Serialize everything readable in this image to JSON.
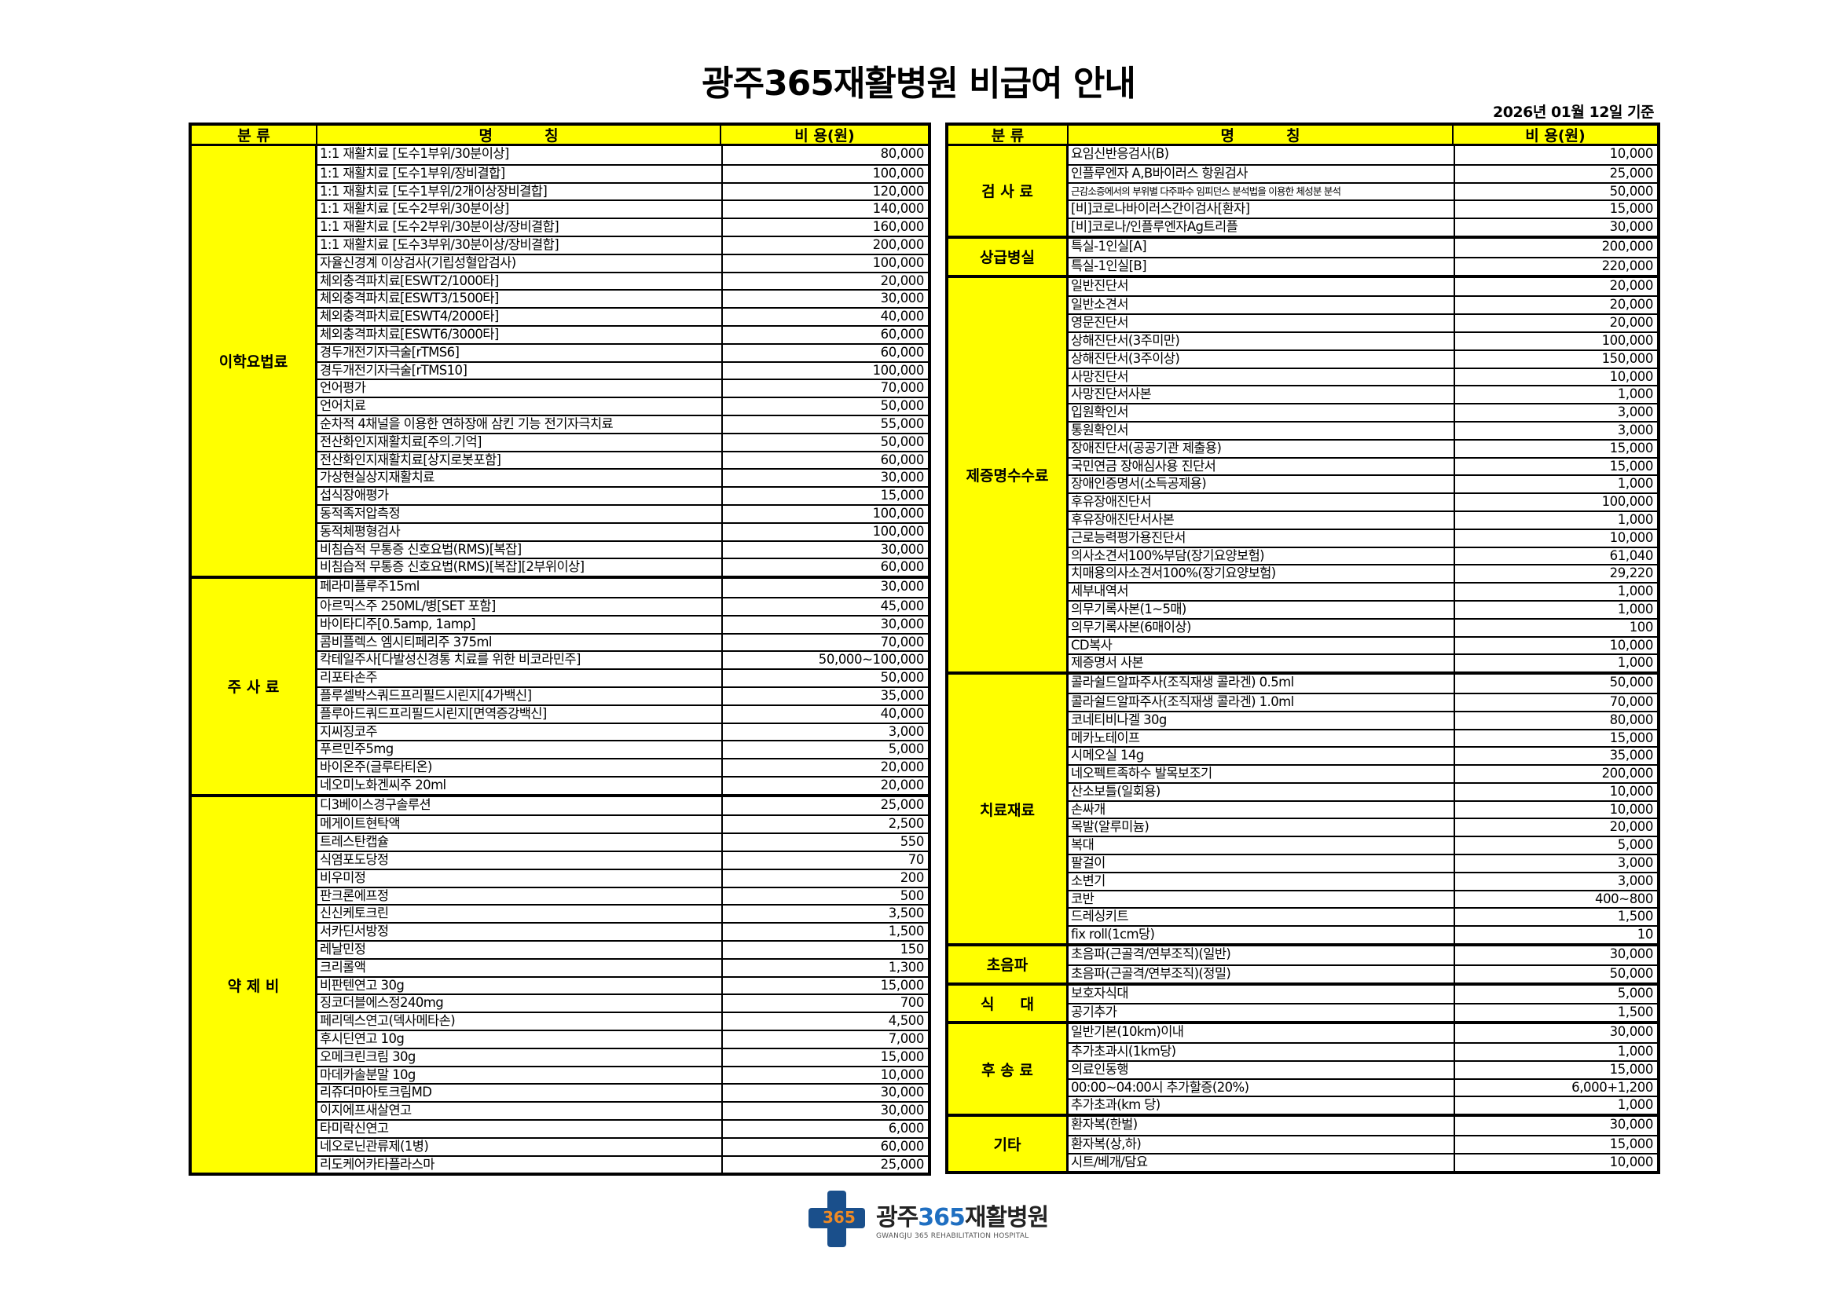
{
  "title": "광주365재활병원 비급여 안내",
  "date_label": "2026년 01월 12일 기준",
  "header": {
    "category": "분 류",
    "name": "명          칭",
    "price": "비 용(원)"
  },
  "colors": {
    "header_bg": "#ffff00",
    "category_bg": "#ffff00",
    "border": "#000000"
  },
  "left_groups": [
    {
      "category": "이학요법료",
      "items": [
        {
          "name": "1:1 재활치료 [도수1부위/30분이상]",
          "price": "80,000"
        },
        {
          "name": "1:1 재활치료 [도수1부위/장비결합]",
          "price": "100,000"
        },
        {
          "name": "1:1 재활치료 [도수1부위/2개이상장비결합]",
          "price": "120,000"
        },
        {
          "name": "1:1 재활치료 [도수2부위/30분이상]",
          "price": "140,000"
        },
        {
          "name": "1:1 재활치료 [도수2부위/30분이상/장비결합]",
          "price": "160,000"
        },
        {
          "name": "1:1 재활치료 [도수3부위/30분이상/장비결합]",
          "price": "200,000"
        },
        {
          "name": "자율신경계 이상검사(기립성혈압검사)",
          "price": "100,000"
        },
        {
          "name": "체외충격파치료[ESWT2/1000타]",
          "price": "20,000"
        },
        {
          "name": "체외충격파치료[ESWT3/1500타]",
          "price": "30,000"
        },
        {
          "name": "체외충격파치료[ESWT4/2000타]",
          "price": "40,000"
        },
        {
          "name": "체외충격파치료[ESWT6/3000타]",
          "price": "60,000"
        },
        {
          "name": "경두개전기자극술[rTMS6]",
          "price": "60,000"
        },
        {
          "name": "경두개전기자극술[rTMS10]",
          "price": "100,000"
        },
        {
          "name": "언어평가",
          "price": "70,000"
        },
        {
          "name": "언어치료",
          "price": "50,000"
        },
        {
          "name": "순차적 4채널을 이용한 연하장애 삼킨 기능 전기자극치료",
          "price": "55,000"
        },
        {
          "name": "전산화인지재활치료[주의.기억]",
          "price": "50,000"
        },
        {
          "name": "전산화인지재활치료[상지로봇포함]",
          "price": "60,000"
        },
        {
          "name": "가상현실상지재활치료",
          "price": "30,000"
        },
        {
          "name": "섭식장애평가",
          "price": "15,000"
        },
        {
          "name": "동적족저압측정",
          "price": "100,000"
        },
        {
          "name": "동적체평형검사",
          "price": "100,000"
        },
        {
          "name": "비침습적 무통증 신호요법(RMS)[복잡]",
          "price": "30,000"
        },
        {
          "name": "비침습적 무통증 신호요법(RMS)[복잡][2부위이상]",
          "price": "60,000"
        }
      ]
    },
    {
      "category": "주 사 료",
      "items": [
        {
          "name": "페라미플루주15ml",
          "price": "30,000"
        },
        {
          "name": "아르믹스주 250ML/병[SET 포함]",
          "price": "45,000"
        },
        {
          "name": "바이타디주[0.5amp, 1amp]",
          "price": "30,000"
        },
        {
          "name": "콤비플렉스 엠시티페리주 375ml",
          "price": "70,000"
        },
        {
          "name": "칵테일주사[다발성신경통 치료를 위한 비코라민주]",
          "price": "50,000~100,000"
        },
        {
          "name": "리포타손주",
          "price": "50,000"
        },
        {
          "name": "플루셀박스쿼드프리필드시린지[4가백신]",
          "price": "35,000"
        },
        {
          "name": "플루아드쿼드프리필드시린지[면역증강백신]",
          "price": "40,000"
        },
        {
          "name": "지씨징코주",
          "price": "3,000"
        },
        {
          "name": "푸르민주5mg",
          "price": "5,000"
        },
        {
          "name": "바이온주(글루타티온)",
          "price": "20,000"
        },
        {
          "name": "네오미노화겐씨주 20ml",
          "price": "20,000"
        }
      ]
    },
    {
      "category": "약 제 비",
      "items": [
        {
          "name": "디3베이스경구솔루션",
          "price": "25,000"
        },
        {
          "name": "메게이트현탁액",
          "price": "2,500"
        },
        {
          "name": "트레스탄캡슐",
          "price": "550"
        },
        {
          "name": "식염포도당정",
          "price": "70"
        },
        {
          "name": "비우미정",
          "price": "200"
        },
        {
          "name": "판크론에프정",
          "price": "500"
        },
        {
          "name": "신신케토크린",
          "price": "3,500"
        },
        {
          "name": "서카딘서방정",
          "price": "1,500"
        },
        {
          "name": "레날민정",
          "price": "150"
        },
        {
          "name": "크리롤액",
          "price": "1,300"
        },
        {
          "name": "비판텐연고 30g",
          "price": "15,000"
        },
        {
          "name": "징코더블에스정240mg",
          "price": "700"
        },
        {
          "name": "페리덱스연고(덱사메타손)",
          "price": "4,500"
        },
        {
          "name": "후시딘연고 10g",
          "price": "7,000"
        },
        {
          "name": "오메크린크림 30g",
          "price": "15,000"
        },
        {
          "name": "마데카솔분말 10g",
          "price": "10,000"
        },
        {
          "name": "리쥬더마아토크림MD",
          "price": "30,000"
        },
        {
          "name": "이지에프새살연고",
          "price": "30,000"
        },
        {
          "name": "타미락신연고",
          "price": "6,000"
        },
        {
          "name": "네오로닌관류제(1병)",
          "price": "60,000"
        },
        {
          "name": "리도케어카타플라스마",
          "price": "25,000"
        }
      ]
    }
  ],
  "right_groups": [
    {
      "category": "검 사 료",
      "items": [
        {
          "name": "요임신반응검사(B)",
          "price": "10,000"
        },
        {
          "name": "인플루엔자 A,B바이러스 항원검사",
          "price": "25,000"
        },
        {
          "name": "근감소증에서의 부위별 다주파수 임피던스 분석법을 이용한 체성분 분석",
          "price": "50,000",
          "small": true
        },
        {
          "name": "[비]코로나바이러스간이검사[환자]",
          "price": "15,000"
        },
        {
          "name": "[비]코로나/인플루엔자Ag트리플",
          "price": "30,000"
        }
      ]
    },
    {
      "category": "상급병실",
      "items": [
        {
          "name": "특실-1인실[A]",
          "price": "200,000"
        },
        {
          "name": "특실-1인실[B]",
          "price": "220,000"
        }
      ]
    },
    {
      "category": "제증명수수료",
      "items": [
        {
          "name": "일반진단서",
          "price": "20,000"
        },
        {
          "name": "일반소견서",
          "price": "20,000"
        },
        {
          "name": "영문진단서",
          "price": "20,000"
        },
        {
          "name": "상해진단서(3주미만)",
          "price": "100,000"
        },
        {
          "name": "상해진단서(3주이상)",
          "price": "150,000"
        },
        {
          "name": "사망진단서",
          "price": "10,000"
        },
        {
          "name": "사망진단서사본",
          "price": "1,000"
        },
        {
          "name": "입원확인서",
          "price": "3,000"
        },
        {
          "name": "통원확인서",
          "price": "3,000"
        },
        {
          "name": "장애진단서(공공기관 제출용)",
          "price": "15,000"
        },
        {
          "name": "국민연금 장애심사용 진단서",
          "price": "15,000"
        },
        {
          "name": "장애인증명서(소득공제용)",
          "price": "1,000"
        },
        {
          "name": "후유장애진단서",
          "price": "100,000"
        },
        {
          "name": "후유장애진단서사본",
          "price": "1,000"
        },
        {
          "name": "근로능력평가용진단서",
          "price": "10,000"
        },
        {
          "name": "의사소견서100%부담(장기요양보험)",
          "price": "61,040"
        },
        {
          "name": "치매용의사소견서100%(장기요양보험)",
          "price": "29,220"
        },
        {
          "name": "세부내역서",
          "price": "1,000"
        },
        {
          "name": "의무기록사본(1~5매)",
          "price": "1,000"
        },
        {
          "name": "의무기록사본(6매이상)",
          "price": "100"
        },
        {
          "name": "CD복사",
          "price": "10,000"
        },
        {
          "name": "제증명서 사본",
          "price": "1,000"
        }
      ]
    },
    {
      "category": "치료재료",
      "items": [
        {
          "name": "콜라쉴드알파주사(조직재생 콜라겐) 0.5ml",
          "price": "50,000"
        },
        {
          "name": "콜라쉴드알파주사(조직재생 콜라겐) 1.0ml",
          "price": "70,000"
        },
        {
          "name": "코네티비나겔 30g",
          "price": "80,000"
        },
        {
          "name": "메카노테이프",
          "price": "15,000"
        },
        {
          "name": "시메오실 14g",
          "price": "35,000"
        },
        {
          "name": "네오펙트족하수 발목보조기",
          "price": "200,000"
        },
        {
          "name": "산소보틀(일회용)",
          "price": "10,000"
        },
        {
          "name": "손싸개",
          "price": "10,000"
        },
        {
          "name": "목발(알루미늄)",
          "price": "20,000"
        },
        {
          "name": "복대",
          "price": "5,000"
        },
        {
          "name": "팔걸이",
          "price": "3,000"
        },
        {
          "name": "소변기",
          "price": "3,000"
        },
        {
          "name": "코반",
          "price": "400~800"
        },
        {
          "name": "드레싱키트",
          "price": "1,500"
        },
        {
          "name": "fix roll(1cm당)",
          "price": "10"
        }
      ]
    },
    {
      "category": "초음파",
      "items": [
        {
          "name": "초음파(근골격/연부조직)(일반)",
          "price": "30,000"
        },
        {
          "name": "초음파(근골격/연부조직)(정밀)",
          "price": "50,000"
        }
      ]
    },
    {
      "category": "식     대",
      "items": [
        {
          "name": "보호자식대",
          "price": "5,000"
        },
        {
          "name": "공기추가",
          "price": "1,500"
        }
      ]
    },
    {
      "category": "후 송 료",
      "items": [
        {
          "name": "일반기본(10km)이내",
          "price": "30,000"
        },
        {
          "name": "추가초과시(1km당)",
          "price": "1,000"
        },
        {
          "name": "의료인동행",
          "price": "15,000"
        },
        {
          "name": "00:00~04:00시 추가할증(20%)",
          "price": "6,000+1,200"
        },
        {
          "name": "추가초과(km 당)",
          "price": "1,000"
        }
      ]
    },
    {
      "category": "기타",
      "items": [
        {
          "name": "환자복(한벌)",
          "price": "30,000"
        },
        {
          "name": "환자복(상,하)",
          "price": "15,000"
        },
        {
          "name": "시트/베개/담요",
          "price": "10,000"
        }
      ]
    }
  ],
  "logo": {
    "name_ko_a": "광주",
    "name_ko_b": "365",
    "name_ko_c": "재활병원",
    "name_en": "GWANGJU 365 REHABILITATION HOSPITAL",
    "mark_text": "365"
  }
}
